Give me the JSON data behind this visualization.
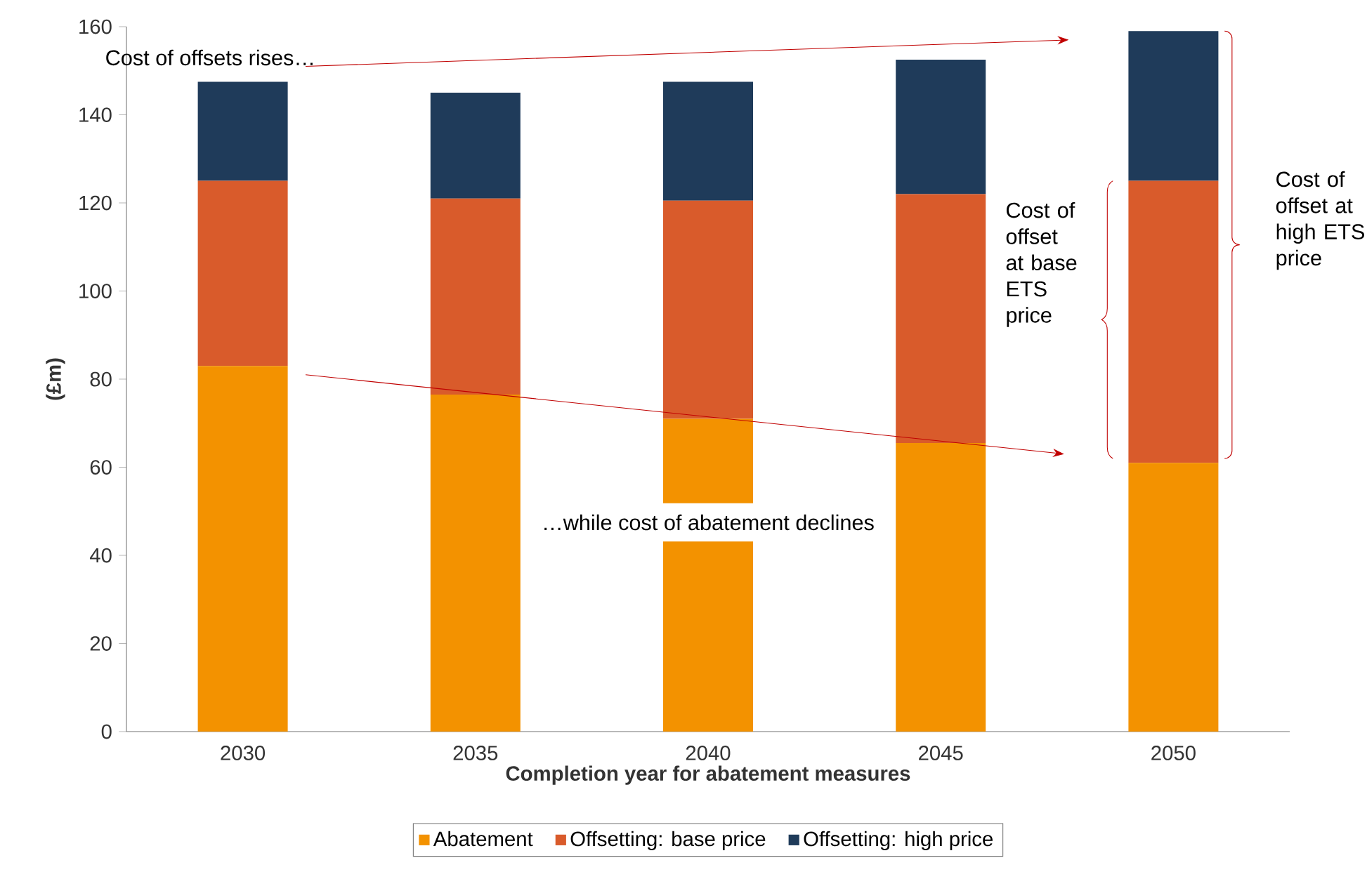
{
  "chart_data": {
    "type": "bar",
    "stacked": true,
    "categories": [
      "2030",
      "2035",
      "2040",
      "2045",
      "2050"
    ],
    "series": [
      {
        "name": "Abatement",
        "color": "#f39200",
        "values": [
          83,
          76.5,
          71,
          65.5,
          61
        ]
      },
      {
        "name": "Offsetting: base price",
        "color": "#d95b2b",
        "values": [
          42,
          44.5,
          49.5,
          56.5,
          64
        ]
      },
      {
        "name": "Offsetting: high price",
        "color": "#1f3b5a",
        "values": [
          22.5,
          24,
          27,
          30.5,
          34
        ]
      }
    ],
    "xlabel": "Completion year for abatement measures",
    "ylabel": "(£m)",
    "ylim": [
      0,
      160
    ],
    "yticks": [
      0,
      20,
      40,
      60,
      80,
      100,
      120,
      140,
      160
    ],
    "legend": "bottom",
    "annotations": [
      "Cost of offsets rises…",
      "…while cost of abatement declines",
      "Cost of offset at base ETS price",
      "Cost of offset at high ETS price"
    ]
  }
}
